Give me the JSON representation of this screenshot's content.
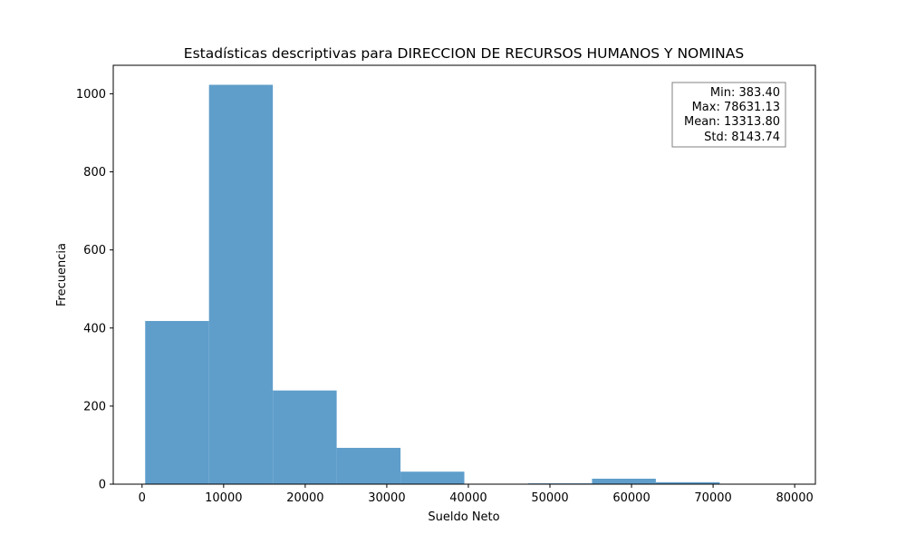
{
  "chart_data": {
    "type": "bar",
    "title": "Estadísticas descriptivas para DIRECCION DE RECURSOS HUMANOS Y NOMINAS",
    "xlabel": "Sueldo Neto",
    "ylabel": "Frecuencia",
    "xlim": [
      -3530,
      82540
    ],
    "ylim": [
      0,
      1073
    ],
    "xticks": [
      0,
      10000,
      20000,
      30000,
      40000,
      50000,
      60000,
      70000,
      80000
    ],
    "xtick_labels": [
      "0",
      "10000",
      "20000",
      "30000",
      "40000",
      "50000",
      "60000",
      "70000",
      "80000"
    ],
    "yticks": [
      0,
      200,
      400,
      600,
      800,
      1000
    ],
    "ytick_labels": [
      "0",
      "200",
      "400",
      "600",
      "800",
      "1000"
    ],
    "bar_color": "#5f9ecb",
    "bins": [
      {
        "x0": 383.4,
        "x1": 8208.17,
        "count": 418
      },
      {
        "x0": 8208.17,
        "x1": 16032.95,
        "count": 1023
      },
      {
        "x0": 16032.95,
        "x1": 23857.72,
        "count": 240
      },
      {
        "x0": 23857.72,
        "x1": 31682.49,
        "count": 93
      },
      {
        "x0": 31682.49,
        "x1": 39507.27,
        "count": 32
      },
      {
        "x0": 39507.27,
        "x1": 47332.04,
        "count": 0
      },
      {
        "x0": 47332.04,
        "x1": 55156.81,
        "count": 2
      },
      {
        "x0": 55156.81,
        "x1": 62981.59,
        "count": 14
      },
      {
        "x0": 62981.59,
        "x1": 70806.36,
        "count": 5
      },
      {
        "x0": 70806.36,
        "x1": 78631.13,
        "count": 1
      }
    ],
    "grid": false,
    "stats_box": {
      "placement": "top-right",
      "lines": [
        "Min: 383.40",
        "Max: 78631.13",
        "Mean: 13313.80",
        "Std: 8143.74"
      ]
    }
  }
}
